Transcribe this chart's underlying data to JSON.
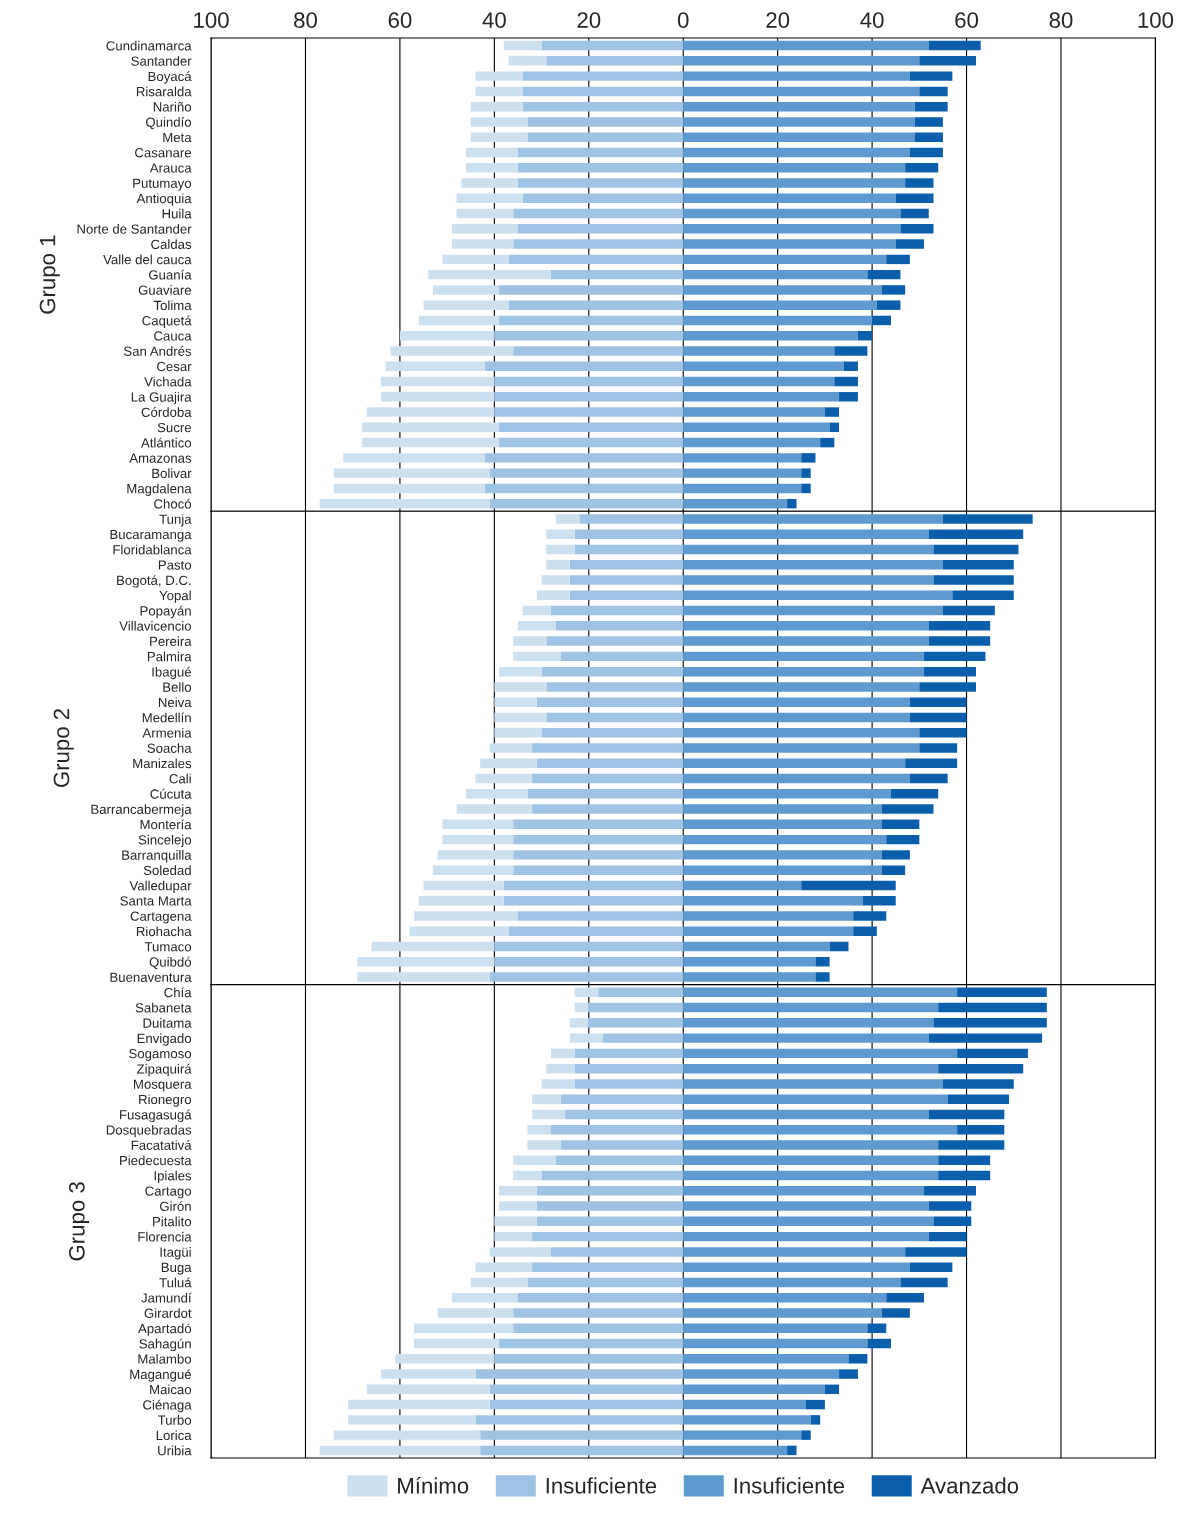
{
  "chart_data": [
    {
      "type": "bar",
      "orientation": "horizontal",
      "stacked": true,
      "ylabel": "Grupo 1",
      "grid": "x",
      "xlim": [
        -100,
        100
      ],
      "legend": "bottom",
      "xticks": [
        {
          "value": -100,
          "label": "100"
        },
        {
          "value": -80,
          "label": "80"
        },
        {
          "value": -60,
          "label": "60"
        },
        {
          "value": -40,
          "label": "40"
        },
        {
          "value": -20,
          "label": "20"
        },
        0,
        20,
        40,
        60,
        80,
        100
      ],
      "categories": [
        "Cundinamarca",
        "Santander",
        "Boyacá",
        "Risaralda",
        "Nariño",
        "Quindío",
        "Meta",
        "Casanare",
        "Arauca",
        "Putumayo",
        "Antioquia",
        "Huila",
        "Norte de Santander",
        "Caldas",
        "Valle del cauca",
        "Guanía",
        "Guaviare",
        "Tolima",
        "Caquetá",
        "Cauca",
        "San Andrés",
        "Cesar",
        "Vichada",
        "La Guajira",
        "Córdoba",
        "Sucre",
        "Atlántico",
        "Amazonas",
        "Bolivar",
        "Magdalena",
        "Chocó"
      ],
      "series": [
        {
          "name": "Insuficiente",
          "color": "#9fc3e4",
          "values": [
            -30,
            -29,
            -34,
            -34,
            -34,
            -33,
            -33,
            -35,
            -35,
            -35,
            -34,
            -36,
            -35,
            -36,
            -37,
            -28,
            -39,
            -37,
            -39,
            -40,
            -36,
            -42,
            -40,
            -40,
            -40,
            -39,
            -39,
            -42,
            -41,
            -42,
            -41
          ]
        },
        {
          "name": "Mínimo",
          "color": "#cde0f0",
          "values": [
            -8,
            -8,
            -10,
            -10,
            -11,
            -12,
            -12,
            -11,
            -11,
            -12,
            -14,
            -12,
            -14,
            -13,
            -14,
            -26,
            -14,
            -18,
            -17,
            -20,
            -26,
            -21,
            -24,
            -24,
            -27,
            -29,
            -29,
            -30,
            -33,
            -32,
            -36
          ]
        },
        {
          "name": "Insuficiente",
          "color": "#5e9ad0",
          "values": [
            52,
            50,
            48,
            50,
            49,
            49,
            49,
            48,
            47,
            47,
            45,
            46,
            46,
            45,
            43,
            39,
            42,
            41,
            40,
            37,
            32,
            34,
            32,
            33,
            30,
            31,
            29,
            25,
            25,
            25,
            22
          ]
        },
        {
          "name": "Avanzado",
          "color": "#0b5eab",
          "values": [
            11,
            12,
            9,
            6,
            7,
            6,
            6,
            7,
            7,
            6,
            8,
            6,
            7,
            6,
            5,
            7,
            5,
            5,
            4,
            3,
            7,
            3,
            5,
            4,
            3,
            2,
            3,
            3,
            2,
            2,
            2
          ]
        }
      ]
    },
    {
      "type": "bar",
      "orientation": "horizontal",
      "stacked": true,
      "ylabel": "Grupo 2",
      "grid": "x",
      "xlim": [
        -100,
        100
      ],
      "tick_labels": "y",
      "xticks": [
        {
          "value": -100,
          "label": null
        },
        {
          "value": -80,
          "label": null
        },
        {
          "value": -60,
          "label": null
        },
        {
          "value": -40,
          "label": null
        },
        {
          "value": -20,
          "label": null
        },
        {
          "value": 0,
          "label": null
        },
        {
          "value": 20,
          "label": null
        },
        {
          "value": 40,
          "label": null
        },
        {
          "value": 60,
          "label": null
        },
        {
          "value": 80,
          "label": null
        },
        {
          "value": 100,
          "label": null
        }
      ],
      "categories": [
        "Tunja",
        "Bucaramanga",
        "Floridablanca",
        "Pasto",
        "Bogotá, D.C.",
        "Yopal",
        "Popayán",
        "Villavicencio",
        "Pereira",
        "Palmira",
        "Ibagué",
        "Bello",
        "Neiva",
        "Medellín",
        "Armenia",
        "Soacha",
        "Manizales",
        "Cali",
        "Cúcuta",
        "Barrancabermeja",
        "Montería",
        "Sincelejo",
        "Barranquilla",
        "Soledad",
        "Valledupar",
        "Santa Marta",
        "Cartagena",
        "Riohacha",
        "Tumaco",
        "Quibdó",
        "Buenaventura"
      ],
      "series": [
        {
          "color": "#9fc3e4",
          "values": [
            -22,
            -23,
            -23,
            -24,
            -24,
            -24,
            -28,
            -27,
            -29,
            -26,
            -30,
            -29,
            -31,
            -29,
            -30,
            -32,
            -31,
            -32,
            -33,
            -32,
            -36,
            -36,
            -36,
            -36,
            -38,
            -38,
            -35,
            -37,
            -40,
            -40,
            -41
          ]
        },
        {
          "color": "#cde0f0",
          "values": [
            -5,
            -6,
            -6,
            -5,
            -6,
            -7,
            -6,
            -8,
            -7,
            -10,
            -9,
            -11,
            -9,
            -11,
            -10,
            -9,
            -12,
            -12,
            -13,
            -16,
            -15,
            -15,
            -16,
            -17,
            -17,
            -18,
            -22,
            -21,
            -26,
            -29,
            -28
          ]
        },
        {
          "color": "#5e9ad0",
          "values": [
            55,
            52,
            53,
            55,
            53,
            57,
            55,
            52,
            52,
            51,
            51,
            50,
            48,
            48,
            50,
            50,
            47,
            48,
            44,
            42,
            42,
            43,
            42,
            42,
            25,
            38,
            36,
            36,
            31,
            28,
            28
          ]
        },
        {
          "color": "#0b5eab",
          "values": [
            19,
            20,
            18,
            15,
            17,
            13,
            11,
            13,
            13,
            13,
            11,
            12,
            12,
            12,
            10,
            8,
            11,
            8,
            10,
            11,
            8,
            7,
            6,
            5,
            20,
            7,
            7,
            5,
            4,
            3,
            3
          ]
        }
      ]
    },
    {
      "type": "bar",
      "orientation": "horizontal",
      "stacked": true,
      "ylabel": "Grupo 3",
      "grid": "x",
      "xlim": [
        -100,
        100
      ],
      "tick_labels": "y",
      "xticks": [
        {
          "value": -100,
          "label": null
        },
        {
          "value": -80,
          "label": null
        },
        {
          "value": -60,
          "label": null
        },
        {
          "value": -40,
          "label": null
        },
        {
          "value": -20,
          "label": null
        },
        {
          "value": 0,
          "label": null
        },
        {
          "value": 20,
          "label": null
        },
        {
          "value": 40,
          "label": null
        },
        {
          "value": 60,
          "label": null
        },
        {
          "value": 80,
          "label": null
        },
        {
          "value": 100,
          "label": null
        }
      ],
      "categories": [
        "Chía",
        "Sabaneta",
        "Duitama",
        "Envigado",
        "Sogamoso",
        "Zipaquirá",
        "Mosquera",
        "Rionegro",
        "Fusagasugá",
        "Dosquebradas",
        "Facatativá",
        "Piedecuesta",
        "Ipiales",
        "Cartago",
        "Girón",
        "Pitalito",
        "Florencia",
        "Itagüi",
        "Buga",
        "Tuluá",
        "Jamundí",
        "Girardot",
        "Apartadó",
        "Sahagún",
        "Malambo",
        "Magangué",
        "Maicao",
        "Ciénaga",
        "Turbo",
        "Lorica",
        "Uribia"
      ],
      "series": [
        {
          "color": "#9fc3e4",
          "values": [
            -18,
            -20,
            -20,
            -17,
            -23,
            -23,
            -23,
            -26,
            -25,
            -28,
            -26,
            -27,
            -30,
            -31,
            -31,
            -31,
            -32,
            -28,
            -32,
            -33,
            -35,
            -36,
            -36,
            -39,
            -40,
            -44,
            -41,
            -41,
            -44,
            -43,
            -43
          ]
        },
        {
          "color": "#cde0f0",
          "values": [
            -5,
            -3,
            -4,
            -7,
            -5,
            -6,
            -7,
            -6,
            -7,
            -5,
            -7,
            -9,
            -6,
            -8,
            -8,
            -9,
            -8,
            -13,
            -12,
            -12,
            -14,
            -16,
            -21,
            -18,
            -21,
            -20,
            -26,
            -30,
            -27,
            -31,
            -34
          ]
        },
        {
          "color": "#5e9ad0",
          "values": [
            58,
            54,
            53,
            52,
            58,
            54,
            55,
            56,
            52,
            58,
            54,
            54,
            54,
            51,
            52,
            53,
            52,
            47,
            48,
            46,
            43,
            42,
            39,
            39,
            35,
            33,
            30,
            26,
            27,
            25,
            22
          ]
        },
        {
          "color": "#0b5eab",
          "values": [
            19,
            23,
            24,
            24,
            15,
            18,
            15,
            13,
            16,
            10,
            14,
            11,
            11,
            11,
            9,
            8,
            8,
            13,
            9,
            10,
            8,
            6,
            4,
            5,
            4,
            4,
            3,
            4,
            2,
            2,
            2
          ]
        }
      ]
    }
  ]
}
